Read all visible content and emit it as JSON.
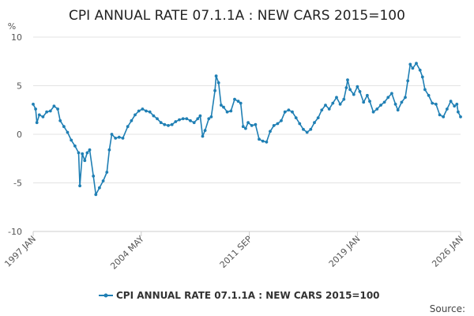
{
  "chart_data": {
    "type": "line",
    "title": "CPI ANNUAL RATE 07.1.1A : NEW CARS 2015=100",
    "ylabel": "%",
    "ylim": [
      -10,
      10
    ],
    "yticks": [
      "10",
      "5",
      "0",
      "-5",
      "-10"
    ],
    "ytick_values": [
      10,
      5,
      0,
      -5,
      -10
    ],
    "xlim": [
      "1997-01",
      "2026-01"
    ],
    "xticks": [
      {
        "label": "1997 JAN",
        "date": "1997-01"
      },
      {
        "label": "2004 MAY",
        "date": "2004-05"
      },
      {
        "label": "2011 SEP",
        "date": "2011-09"
      },
      {
        "label": "2019 JAN",
        "date": "2019-01"
      },
      {
        "label": "2026 JAN",
        "date": "2026-01"
      }
    ],
    "color": "#1f7fb4",
    "grid": "horizontal",
    "legend_position": "bottom",
    "series": [
      {
        "name": "CPI ANNUAL RATE 07.1.1A : NEW CARS 2015=100",
        "points": [
          [
            "1997-01",
            3.1
          ],
          [
            "1997-03",
            2.6
          ],
          [
            "1997-04",
            1.2
          ],
          [
            "1997-06",
            2.0
          ],
          [
            "1997-09",
            1.8
          ],
          [
            "1997-12",
            2.3
          ],
          [
            "1998-03",
            2.4
          ],
          [
            "1998-06",
            2.9
          ],
          [
            "1998-09",
            2.6
          ],
          [
            "1998-11",
            1.4
          ],
          [
            "1999-02",
            0.8
          ],
          [
            "1999-05",
            0.2
          ],
          [
            "1999-08",
            -0.6
          ],
          [
            "1999-11",
            -1.2
          ],
          [
            "2000-02",
            -1.9
          ],
          [
            "2000-03",
            -5.3
          ],
          [
            "2000-05",
            -2.0
          ],
          [
            "2000-07",
            -2.7
          ],
          [
            "2000-09",
            -1.9
          ],
          [
            "2000-11",
            -1.6
          ],
          [
            "2001-02",
            -4.3
          ],
          [
            "2001-04",
            -6.2
          ],
          [
            "2001-07",
            -5.5
          ],
          [
            "2001-10",
            -4.8
          ],
          [
            "2002-01",
            -3.9
          ],
          [
            "2002-03",
            -1.6
          ],
          [
            "2002-05",
            0.0
          ],
          [
            "2002-08",
            -0.4
          ],
          [
            "2002-11",
            -0.3
          ],
          [
            "2003-02",
            -0.4
          ],
          [
            "2003-06",
            0.8
          ],
          [
            "2003-09",
            1.4
          ],
          [
            "2003-12",
            2.0
          ],
          [
            "2004-03",
            2.4
          ],
          [
            "2004-06",
            2.6
          ],
          [
            "2004-09",
            2.4
          ],
          [
            "2004-12",
            2.3
          ],
          [
            "2005-03",
            1.9
          ],
          [
            "2005-06",
            1.6
          ],
          [
            "2005-09",
            1.2
          ],
          [
            "2005-12",
            1.0
          ],
          [
            "2006-03",
            0.9
          ],
          [
            "2006-06",
            1.0
          ],
          [
            "2006-09",
            1.3
          ],
          [
            "2006-12",
            1.5
          ],
          [
            "2007-03",
            1.6
          ],
          [
            "2007-06",
            1.6
          ],
          [
            "2007-09",
            1.4
          ],
          [
            "2007-12",
            1.2
          ],
          [
            "2008-03",
            1.6
          ],
          [
            "2008-05",
            1.9
          ],
          [
            "2008-07",
            -0.2
          ],
          [
            "2008-09",
            0.4
          ],
          [
            "2008-12",
            1.6
          ],
          [
            "2009-02",
            1.8
          ],
          [
            "2009-05",
            4.5
          ],
          [
            "2009-06",
            6.0
          ],
          [
            "2009-08",
            5.3
          ],
          [
            "2009-10",
            3.0
          ],
          [
            "2009-12",
            2.8
          ],
          [
            "2010-03",
            2.3
          ],
          [
            "2010-06",
            2.4
          ],
          [
            "2010-09",
            3.6
          ],
          [
            "2010-12",
            3.4
          ],
          [
            "2011-02",
            3.2
          ],
          [
            "2011-04",
            0.8
          ],
          [
            "2011-06",
            0.6
          ],
          [
            "2011-08",
            1.2
          ],
          [
            "2011-11",
            0.9
          ],
          [
            "2012-02",
            1.0
          ],
          [
            "2012-05",
            -0.5
          ],
          [
            "2012-08",
            -0.7
          ],
          [
            "2012-11",
            -0.8
          ],
          [
            "2013-02",
            0.3
          ],
          [
            "2013-05",
            0.9
          ],
          [
            "2013-08",
            1.1
          ],
          [
            "2013-11",
            1.4
          ],
          [
            "2014-02",
            2.3
          ],
          [
            "2014-05",
            2.5
          ],
          [
            "2014-08",
            2.3
          ],
          [
            "2014-11",
            1.7
          ],
          [
            "2015-02",
            1.1
          ],
          [
            "2015-05",
            0.5
          ],
          [
            "2015-08",
            0.2
          ],
          [
            "2015-11",
            0.5
          ],
          [
            "2016-02",
            1.2
          ],
          [
            "2016-05",
            1.7
          ],
          [
            "2016-08",
            2.5
          ],
          [
            "2016-11",
            3.0
          ],
          [
            "2017-02",
            2.6
          ],
          [
            "2017-05",
            3.2
          ],
          [
            "2017-08",
            3.8
          ],
          [
            "2017-11",
            3.1
          ],
          [
            "2018-02",
            3.6
          ],
          [
            "2018-04",
            4.8
          ],
          [
            "2018-05",
            5.6
          ],
          [
            "2018-07",
            4.6
          ],
          [
            "2018-10",
            4.1
          ],
          [
            "2019-01",
            4.9
          ],
          [
            "2019-03",
            4.4
          ],
          [
            "2019-06",
            3.3
          ],
          [
            "2019-09",
            4.0
          ],
          [
            "2019-11",
            3.4
          ],
          [
            "2020-02",
            2.3
          ],
          [
            "2020-05",
            2.6
          ],
          [
            "2020-08",
            3.0
          ],
          [
            "2020-11",
            3.3
          ],
          [
            "2021-02",
            3.8
          ],
          [
            "2021-05",
            4.2
          ],
          [
            "2021-08",
            3.1
          ],
          [
            "2021-10",
            2.5
          ],
          [
            "2022-01",
            3.3
          ],
          [
            "2022-04",
            3.8
          ],
          [
            "2022-06",
            5.5
          ],
          [
            "2022-08",
            7.2
          ],
          [
            "2022-10",
            6.8
          ],
          [
            "2023-01",
            7.3
          ],
          [
            "2023-04",
            6.6
          ],
          [
            "2023-06",
            5.9
          ],
          [
            "2023-08",
            4.6
          ],
          [
            "2023-11",
            4.0
          ],
          [
            "2024-02",
            3.2
          ],
          [
            "2024-05",
            3.1
          ],
          [
            "2024-08",
            2.0
          ],
          [
            "2024-11",
            1.8
          ],
          [
            "2025-02",
            2.6
          ],
          [
            "2025-05",
            3.4
          ],
          [
            "2025-08",
            2.9
          ],
          [
            "2025-10",
            3.1
          ],
          [
            "2025-11",
            2.3
          ],
          [
            "2026-01",
            1.8
          ]
        ]
      }
    ]
  },
  "footer": {
    "source_label": "Source:"
  }
}
